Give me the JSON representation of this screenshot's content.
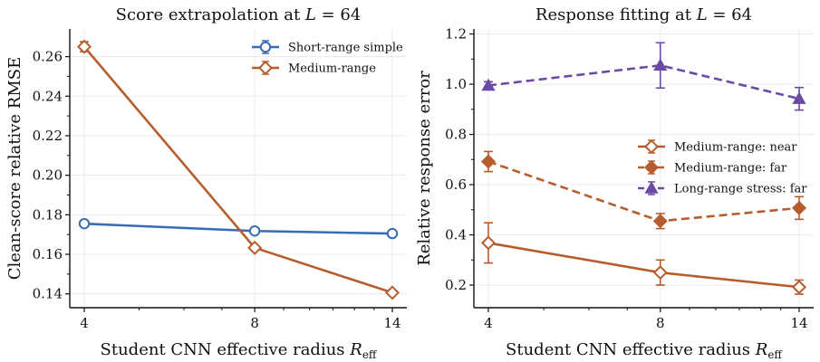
{
  "chart_data": [
    {
      "type": "line",
      "title": "Score extrapolation at L = 64",
      "xlabel": "Student CNN effective radius R_eff",
      "ylabel": "Clean-score relative RMSE",
      "x_scale": "log",
      "xticks": [
        4,
        8,
        14
      ],
      "ylim": [
        0.133,
        0.274
      ],
      "yticks": [
        0.14,
        0.16,
        0.18,
        0.2,
        0.22,
        0.24,
        0.26
      ],
      "legend_position": "top-right",
      "grid": true,
      "series": [
        {
          "name": "Short-range simple",
          "color": "#3a6bb5",
          "marker": "circle-open",
          "linestyle": "solid",
          "x": [
            4,
            8,
            14
          ],
          "y": [
            0.1755,
            0.1718,
            0.1705
          ],
          "err": [
            0.001,
            0.001,
            0.001
          ]
        },
        {
          "name": "Medium-range",
          "color": "#b65d2d",
          "marker": "diamond-open",
          "linestyle": "solid",
          "x": [
            4,
            8,
            14
          ],
          "y": [
            0.265,
            0.1633,
            0.1406
          ],
          "err": [
            0.0025,
            0.001,
            0.001
          ]
        }
      ]
    },
    {
      "type": "line",
      "title": "Response fitting at L = 64",
      "xlabel": "Student CNN effective radius R_eff",
      "ylabel": "Relative response error",
      "x_scale": "log",
      "xticks": [
        4,
        8,
        14
      ],
      "ylim": [
        0.11,
        1.22
      ],
      "yticks": [
        0.2,
        0.4,
        0.6,
        0.8,
        1.0,
        1.2
      ],
      "legend_position": "center-right",
      "grid": true,
      "series": [
        {
          "name": "Medium-range: near",
          "color": "#b65d2d",
          "marker": "diamond-open",
          "linestyle": "solid",
          "x": [
            4,
            8,
            14
          ],
          "y": [
            0.368,
            0.25,
            0.192
          ],
          "err": [
            0.08,
            0.05,
            0.028
          ]
        },
        {
          "name": "Medium-range: far",
          "color": "#b65d2d",
          "marker": "diamond-filled",
          "linestyle": "dashed",
          "x": [
            4,
            8,
            14
          ],
          "y": [
            0.692,
            0.455,
            0.507
          ],
          "err": [
            0.04,
            0.03,
            0.045
          ]
        },
        {
          "name": "Long-range stress: far",
          "color": "#6a4aa5",
          "marker": "triangle-filled",
          "linestyle": "dashed",
          "x": [
            4,
            8,
            14
          ],
          "y": [
            0.995,
            1.075,
            0.942
          ],
          "err": [
            0.015,
            0.09,
            0.045
          ]
        }
      ]
    }
  ]
}
